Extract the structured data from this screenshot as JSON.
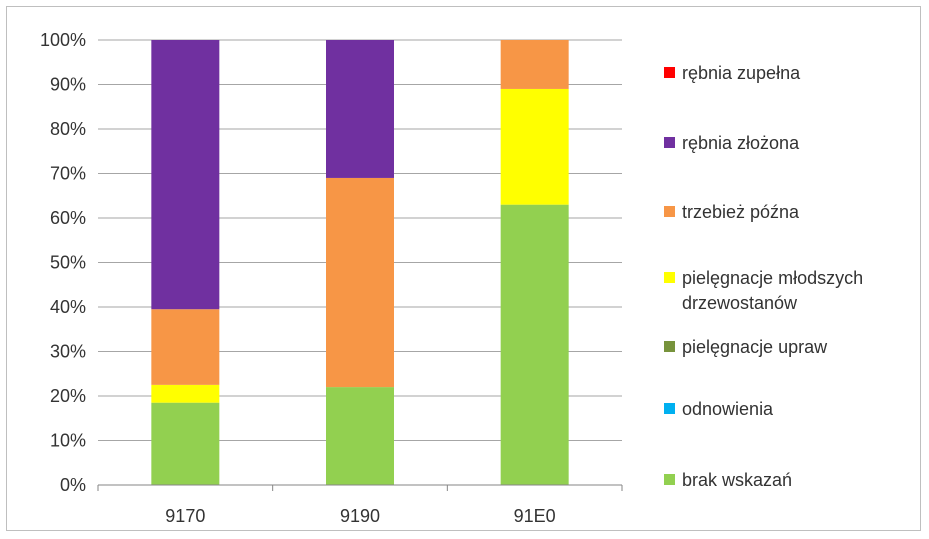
{
  "chart_data": {
    "type": "bar",
    "stacked": "percent",
    "categories": [
      "9170",
      "9190",
      "91E0"
    ],
    "ylim": [
      0,
      100
    ],
    "yticks": [
      "0%",
      "10%",
      "20%",
      "30%",
      "40%",
      "50%",
      "60%",
      "70%",
      "80%",
      "90%",
      "100%"
    ],
    "legend_position": "right",
    "grid": true,
    "series": [
      {
        "name": "brak wskazań",
        "color": "#92d050",
        "values": [
          18.5,
          22,
          63
        ]
      },
      {
        "name": "odnowienia",
        "color": "#00b0f0",
        "values": [
          0,
          0,
          0
        ]
      },
      {
        "name": "pielęgnacje upraw",
        "color": "#77933c",
        "values": [
          0,
          0,
          0
        ]
      },
      {
        "name": "pielęgnacje młodszych drzewostanów",
        "legend_lines": [
          "pielęgnacje młodszych",
          "drzewostanów"
        ],
        "color": "#ffff00",
        "values": [
          4,
          0,
          26
        ]
      },
      {
        "name": "trzebież późna",
        "color": "#f79646",
        "values": [
          17,
          47,
          11
        ]
      },
      {
        "name": "rębnia złożona",
        "color": "#7030a0",
        "values": [
          60.5,
          31,
          0
        ]
      },
      {
        "name": "rębnia zupełna",
        "color": "#ff0000",
        "values": [
          0,
          0,
          0
        ]
      }
    ]
  }
}
